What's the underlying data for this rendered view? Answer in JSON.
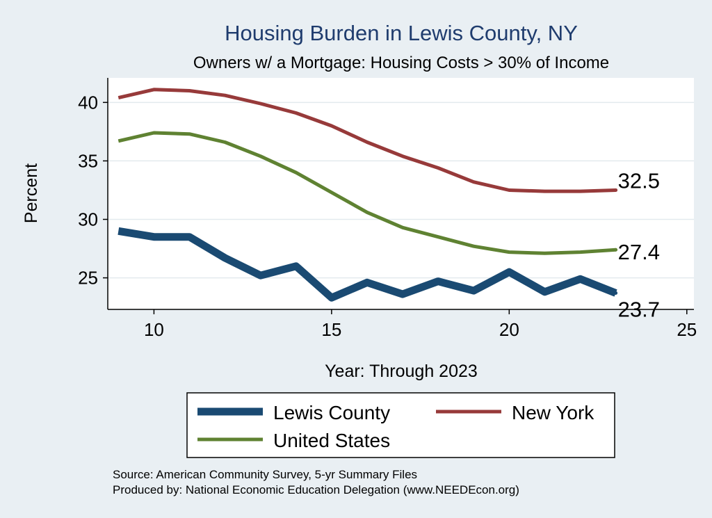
{
  "chart_data": {
    "type": "line",
    "title": "Housing Burden in Lewis County, NY",
    "subtitle": "Owners w/ a Mortgage: Housing Costs > 30% of Income",
    "xlabel": "Year: Through 2023",
    "ylabel": "Percent",
    "xlim": [
      8.7,
      25.2
    ],
    "ylim": [
      22.3,
      42.1
    ],
    "xticks": [
      10,
      15,
      20,
      25
    ],
    "yticks": [
      25,
      30,
      35,
      40
    ],
    "x": [
      9,
      10,
      11,
      12,
      13,
      14,
      15,
      16,
      17,
      18,
      19,
      20,
      21,
      22,
      23
    ],
    "series": [
      {
        "name": "Lewis County",
        "color": "#1a4a72",
        "values": [
          29.0,
          28.5,
          28.5,
          26.7,
          25.2,
          26.0,
          23.3,
          24.6,
          23.6,
          24.7,
          23.9,
          25.5,
          23.8,
          24.9,
          23.7
        ],
        "end_label": "23.7"
      },
      {
        "name": "New York",
        "color": "#973a3a",
        "values": [
          40.4,
          41.1,
          41.0,
          40.6,
          39.9,
          39.1,
          38.0,
          36.6,
          35.4,
          34.4,
          33.2,
          32.5,
          32.4,
          32.4,
          32.5
        ],
        "end_label": "32.5"
      },
      {
        "name": "United States",
        "color": "#5f8232",
        "values": [
          36.7,
          37.4,
          37.3,
          36.6,
          35.4,
          34.0,
          32.3,
          30.6,
          29.3,
          28.5,
          27.7,
          27.2,
          27.1,
          27.2,
          27.4
        ],
        "end_label": "27.4"
      }
    ],
    "legend": [
      "Lewis County",
      "New York",
      "United States"
    ],
    "grid": true
  },
  "footer": {
    "source": "Source: American Community Survey, 5-yr Summary Files",
    "produced_by": "Produced by: National Economic Education Delegation (www.NEEDEcon.org)"
  }
}
